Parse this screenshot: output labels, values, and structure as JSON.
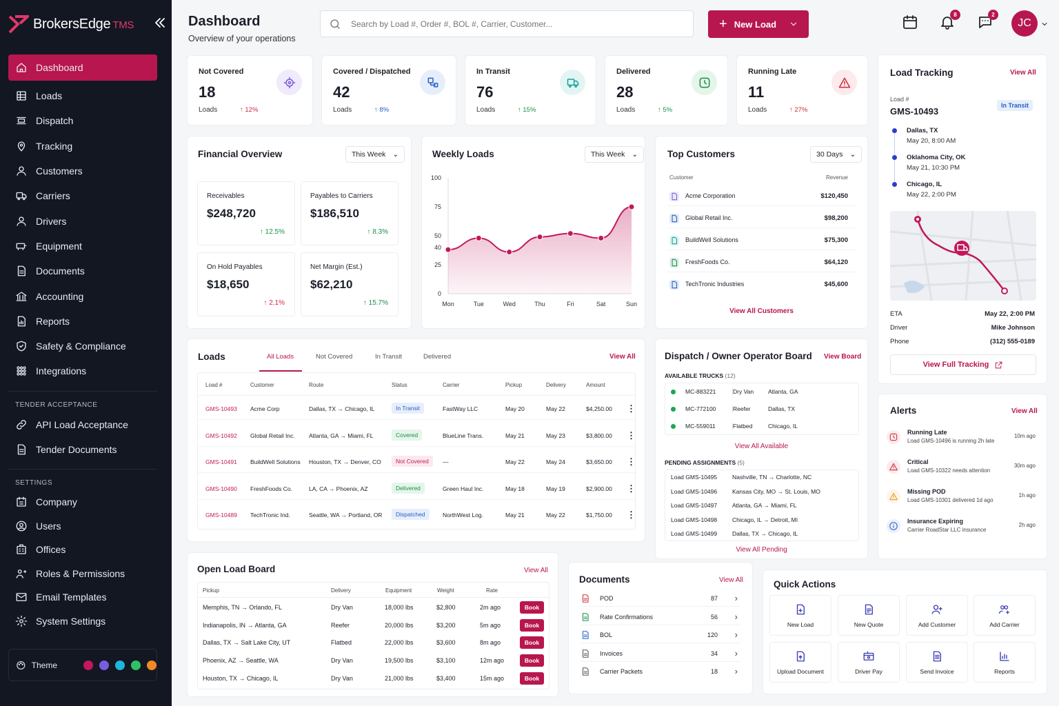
{
  "brand": {
    "name": "BrokersEdge",
    "suffix": "TMS"
  },
  "nav": [
    {
      "label": "Dashboard",
      "icon": "home-icon"
    },
    {
      "label": "Loads",
      "icon": "grid-icon"
    },
    {
      "label": "Dispatch",
      "icon": "dispatch-icon"
    },
    {
      "label": "Tracking",
      "icon": "pin-icon"
    },
    {
      "label": "Customers",
      "icon": "user-icon"
    },
    {
      "label": "Carriers",
      "icon": "truck-icon"
    },
    {
      "label": "Drivers",
      "icon": "user-icon"
    },
    {
      "label": "Equipment",
      "icon": "equipment-icon"
    },
    {
      "label": "Documents",
      "icon": "document-icon"
    },
    {
      "label": "Accounting",
      "icon": "bank-icon"
    },
    {
      "label": "Reports",
      "icon": "report-icon"
    },
    {
      "label": "Safety & Compliance",
      "icon": "shield-icon"
    },
    {
      "label": "Integrations",
      "icon": "integrations-icon"
    }
  ],
  "tender": {
    "title": "TENDER ACCEPTANCE",
    "items": [
      {
        "label": "API Load Acceptance"
      },
      {
        "label": "Tender Documents"
      }
    ]
  },
  "settings": {
    "title": "SETTINGS",
    "items": [
      {
        "label": "Company"
      },
      {
        "label": "Users"
      },
      {
        "label": "Offices"
      },
      {
        "label": "Roles & Permissions"
      },
      {
        "label": "Email Templates"
      },
      {
        "label": "System Settings"
      }
    ]
  },
  "theme": {
    "label": "Theme",
    "colors": [
      "#c2185b",
      "#7b5ce0",
      "#1fb6d9",
      "#2ec262",
      "#f08a24"
    ]
  },
  "header": {
    "title": "Dashboard",
    "subtitle": "Overview of your operations",
    "search_placeholder": "Search by Load #, Order #, BOL #, Carrier, Customer...",
    "new_load": "New Load",
    "notif_count": "8",
    "msg_count": "2",
    "avatar": "JC"
  },
  "stats": [
    {
      "label": "Not Covered",
      "value": "18",
      "unit": "Loads",
      "change": "12%",
      "color": "#7b5ce0",
      "bg": "#efeafc",
      "icon": "target-icon"
    },
    {
      "label": "Covered / Dispatched",
      "value": "42",
      "unit": "Loads",
      "change": "8%",
      "color": "#2360c8",
      "bg": "#e7eefb",
      "icon": "route-icon"
    },
    {
      "label": "In Transit",
      "value": "76",
      "unit": "Loads",
      "change": "15%",
      "color": "#14a39a",
      "bg": "#e2f5f3",
      "icon": "truck-icon"
    },
    {
      "label": "Delivered",
      "value": "28",
      "unit": "Loads",
      "change": "5%",
      "color": "#1a8f4a",
      "bg": "#e5f5ea",
      "icon": "clock-icon"
    },
    {
      "label": "Running Late",
      "value": "11",
      "unit": "Loads",
      "change": "27%",
      "color": "#d02a3b",
      "bg": "#fdeaec",
      "icon": "warning-icon"
    }
  ],
  "financial": {
    "title": "Financial Overview",
    "range": "This Week",
    "items": [
      {
        "label": "Receivables",
        "value": "$248,720",
        "change": "12.5%",
        "dir": "up"
      },
      {
        "label": "Payables to Carriers",
        "value": "$186,510",
        "change": "8.3%",
        "dir": "up"
      },
      {
        "label": "On Hold Payables",
        "value": "$18,650",
        "change": "2.1%",
        "dir": "up-red"
      },
      {
        "label": "Net Margin (Est.)",
        "value": "$62,210",
        "change": "15.7%",
        "dir": "up"
      }
    ]
  },
  "weekly": {
    "title": "Weekly Loads",
    "range": "This Week"
  },
  "chart_data": {
    "type": "area",
    "categories": [
      "Mon",
      "Tue",
      "Wed",
      "Thu",
      "Fri",
      "Sat",
      "Sun"
    ],
    "values": [
      38,
      48,
      36,
      49,
      52,
      48,
      75
    ],
    "ylim": [
      0,
      100
    ],
    "yticks": [
      0,
      25,
      40,
      50,
      75,
      100
    ],
    "color": "#c2185b"
  },
  "customers": {
    "title": "Top Customers",
    "range": "30 Days",
    "col_customer": "Customer",
    "col_revenue": "Revenue",
    "rows": [
      {
        "name": "Acme Corporation",
        "revenue": "$120,450",
        "color": "#7b5ce0"
      },
      {
        "name": "Global Retail Inc.",
        "revenue": "$98,200",
        "color": "#2360c8"
      },
      {
        "name": "BuildWell Solutions",
        "revenue": "$75,300",
        "color": "#14a39a"
      },
      {
        "name": "FreshFoods Co.",
        "revenue": "$64,120",
        "color": "#1a8f4a"
      },
      {
        "name": "TechTronic Industries",
        "revenue": "$45,600",
        "color": "#2360c8"
      }
    ],
    "view_all": "View All Customers"
  },
  "tracking": {
    "title": "Load Tracking",
    "view_all": "View All",
    "load_label": "Load #",
    "load_id": "GMS-10493",
    "status": "In Transit",
    "stops": [
      {
        "city": "Dallas, TX",
        "time": "May 20, 8:00 AM"
      },
      {
        "city": "Oklahoma City, OK",
        "time": "May 21, 10:30 PM"
      },
      {
        "city": "Chicago, IL",
        "time": "May 22, 2:00 PM"
      }
    ],
    "eta_label": "ETA",
    "eta": "May 22, 2:00 PM",
    "driver_label": "Driver",
    "driver": "Mike Johnson",
    "phone_label": "Phone",
    "phone": "(312) 555-0189",
    "full": "View Full Tracking"
  },
  "loads": {
    "title": "Loads",
    "view_all": "View All",
    "tabs": [
      "All Loads",
      "Not Covered",
      "In Transit",
      "Delivered"
    ],
    "headers": [
      "Load #",
      "Customer",
      "Route",
      "Status",
      "Carrier",
      "Pickup",
      "Delivery",
      "Amount"
    ],
    "rows": [
      {
        "id": "GMS-10493",
        "customer": "Acme Corp",
        "route": "Dallas, TX → Chicago, IL",
        "status": "In Transit",
        "sc": "#2360c8",
        "sb": "#e7eefb",
        "carrier": "FastWay LLC",
        "pickup": "May 20",
        "delivery": "May 22",
        "amount": "$4,250.00"
      },
      {
        "id": "GMS-10492",
        "customer": "Global Retail Inc.",
        "route": "Atlanta, GA → Miami, FL",
        "status": "Covered",
        "sc": "#1a8f4a",
        "sb": "#e5f5ea",
        "carrier": "BlueLine Trans.",
        "pickup": "May 21",
        "delivery": "May 23",
        "amount": "$3,800.00"
      },
      {
        "id": "GMS-10491",
        "customer": "BuildWell Solutions",
        "route": "Houston, TX → Denver, CO",
        "status": "Not Covered",
        "sc": "#c2185b",
        "sb": "#fce8ef",
        "carrier": "—",
        "pickup": "May 22",
        "delivery": "May 24",
        "amount": "$3,650.00"
      },
      {
        "id": "GMS-10490",
        "customer": "FreshFoods Co.",
        "route": "LA, CA → Phoenix, AZ",
        "status": "Delivered",
        "sc": "#1a8f4a",
        "sb": "#e5f5ea",
        "carrier": "Green Haul Inc.",
        "pickup": "May 18",
        "delivery": "May 19",
        "amount": "$2,900.00"
      },
      {
        "id": "GMS-10489",
        "customer": "TechTronic Ind.",
        "route": "Seattle, WA → Portland, OR",
        "status": "Dispatched",
        "sc": "#2360c8",
        "sb": "#e7eefb",
        "carrier": "NorthWest Log.",
        "pickup": "May 21",
        "delivery": "May 22",
        "amount": "$1,750.00"
      }
    ]
  },
  "dispatch": {
    "title": "Dispatch / Owner Operator Board",
    "view_board": "View Board",
    "avail_title": "AVAILABLE TRUCKS",
    "avail_count": "(12)",
    "trucks": [
      {
        "id": "MC-883221",
        "type": "Dry Van",
        "loc": "Atlanta, GA"
      },
      {
        "id": "MC-772100",
        "type": "Reefer",
        "loc": "Dallas, TX"
      },
      {
        "id": "MC-559011",
        "type": "Flatbed",
        "loc": "Chicago, IL"
      }
    ],
    "view_avail": "View All Available",
    "pending_title": "PENDING ASSIGNMENTS",
    "pending_count": "(5)",
    "pending": [
      {
        "load": "Load GMS-10495",
        "route": "Nashville, TN → Charlotte, NC"
      },
      {
        "load": "Load GMS-10496",
        "route": "Kansas City, MO → St. Louis, MO"
      },
      {
        "load": "Load GMS-10497",
        "route": "Atlanta, GA → Miami, FL"
      },
      {
        "load": "Load GMS-10498",
        "route": "Chicago, IL → Detroit, MI"
      },
      {
        "load": "Load GMS-10499",
        "route": "Dallas, TX → Chicago, IL"
      }
    ],
    "view_pending": "View All Pending"
  },
  "alerts": {
    "title": "Alerts",
    "view_all": "View All",
    "items": [
      {
        "title": "Running Late",
        "desc": "Load GMS-10496 is running 2h late",
        "time": "10m ago",
        "color": "#d02a3b",
        "icon": "clock-icon"
      },
      {
        "title": "Critical",
        "desc": "Load GMS-10322 needs attention",
        "time": "30m ago",
        "color": "#d02a3b",
        "icon": "warning-icon"
      },
      {
        "title": "Missing POD",
        "desc": "Load GMS-10301 delivered 1d ago",
        "time": "1h ago",
        "color": "#e89a1c",
        "icon": "warning-icon"
      },
      {
        "title": "Insurance Expiring",
        "desc": "Carrier RoadStar LLC insurance",
        "time": "2h ago",
        "color": "#2360c8",
        "icon": "info-icon"
      }
    ]
  },
  "board": {
    "title": "Open Load Board",
    "view_all": "View All",
    "headers": [
      "Pickup",
      "Delivery",
      "Equipment",
      "Weight",
      "Rate"
    ],
    "rows": [
      {
        "pickup": "Memphis, TN → Orlando, FL",
        "equip": "Dry Van",
        "weight": "18,000 lbs",
        "rate": "$2,800",
        "age": "2m ago"
      },
      {
        "pickup": "Indianapolis, IN → Atlanta, GA",
        "equip": "Reefer",
        "weight": "20,000 lbs",
        "rate": "$3,200",
        "age": "5m ago"
      },
      {
        "pickup": "Dallas, TX → Salt Lake City, UT",
        "equip": "Flatbed",
        "weight": "22,000 lbs",
        "rate": "$3,600",
        "age": "8m ago"
      },
      {
        "pickup": "Phoenix, AZ → Seattle, WA",
        "equip": "Dry Van",
        "weight": "19,500 lbs",
        "rate": "$3,100",
        "age": "12m ago"
      },
      {
        "pickup": "Houston, TX → Chicago, IL",
        "equip": "Dry Van",
        "weight": "21,000 lbs",
        "rate": "$3,400",
        "age": "15m ago"
      }
    ],
    "book": "Book"
  },
  "documents": {
    "title": "Documents",
    "view_all": "View All",
    "items": [
      {
        "label": "POD",
        "count": "87",
        "color": "#d02a3b"
      },
      {
        "label": "Rate Confirmations",
        "count": "56",
        "color": "#1a8f4a"
      },
      {
        "label": "BOL",
        "count": "120",
        "color": "#2360c8"
      },
      {
        "label": "Invoices",
        "count": "34",
        "color": "#555"
      },
      {
        "label": "Carrier Packets",
        "count": "18",
        "color": "#555"
      }
    ]
  },
  "quick": {
    "title": "Quick Actions",
    "items": [
      {
        "label": "New Load",
        "icon": "doc-plus-icon"
      },
      {
        "label": "New Quote",
        "icon": "quote-icon"
      },
      {
        "label": "Add Customer",
        "icon": "user-plus-icon"
      },
      {
        "label": "Add Carrier",
        "icon": "users-plus-icon"
      },
      {
        "label": "Upload Document",
        "icon": "upload-icon"
      },
      {
        "label": "Driver Pay",
        "icon": "pay-icon"
      },
      {
        "label": "Send Invoice",
        "icon": "invoice-icon"
      },
      {
        "label": "Reports",
        "icon": "chart-icon"
      }
    ]
  }
}
